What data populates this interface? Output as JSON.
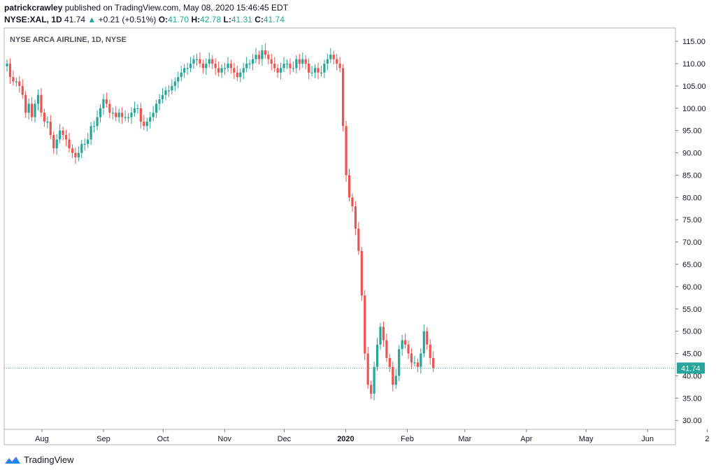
{
  "header": {
    "author": "patrickcrawley",
    "published": "published on TradingView.com, May 08, 2020 15:46:45 EDT",
    "symbol": "NYSE:XAL, 1D",
    "last": "41.74",
    "change_arrow": "▲",
    "change": "+0.21 (+0.51%)",
    "o_label": "O:",
    "o_value": "41.70",
    "h_label": "H:",
    "h_value": "42.78",
    "l_label": "L:",
    "l_value": "41.31",
    "c_label": "C:",
    "c_value": "41.74"
  },
  "chart_title": "NYSE ARCA AIRLINE, 1D, NYSE",
  "footer": {
    "brand": "TradingView",
    "logo_icon": "tradingview-logo-icon"
  },
  "colors": {
    "up": "#26a69a",
    "down": "#ef5350",
    "grid": "#e0e3eb",
    "price_line": "#26a69a"
  },
  "chart_data": {
    "type": "candlestick",
    "title": "NYSE ARCA AIRLINE, 1D, NYSE",
    "ylim": [
      28,
      118
    ],
    "y_ticks": [
      30,
      35,
      40,
      45,
      50,
      55,
      60,
      65,
      70,
      75,
      80,
      85,
      90,
      95,
      100,
      105,
      110,
      115
    ],
    "y_tick_labels": [
      "30.00",
      "35.00",
      "40.00",
      "45.00",
      "50.00",
      "55.00",
      "60.00",
      "65.00",
      "70.00",
      "75.00",
      "80.00",
      "85.00",
      "90.00",
      "95.00",
      "100.00",
      "105.00",
      "110.00",
      "115.00"
    ],
    "x_labels": [
      "Aug",
      "Sep",
      "Oct",
      "Nov",
      "Dec",
      "2020",
      "Feb",
      "Mar",
      "Apr",
      "May",
      "Jun",
      "2"
    ],
    "x_label_days": [
      13,
      44,
      74,
      105,
      135,
      166,
      197,
      226,
      257,
      287,
      318,
      348
    ],
    "start_date": "2019-07-19",
    "last_price_label": "41.74",
    "closes": [
      [
        0,
        110
      ],
      [
        1,
        107
      ],
      [
        2,
        106
      ],
      [
        3,
        106
      ],
      [
        4,
        105
      ],
      [
        5,
        103
      ],
      [
        6,
        99
      ],
      [
        7,
        101
      ],
      [
        8,
        98
      ],
      [
        9,
        101
      ],
      [
        10,
        103
      ],
      [
        11,
        99
      ],
      [
        12,
        97
      ],
      [
        13,
        97
      ],
      [
        14,
        94
      ],
      [
        15,
        91
      ],
      [
        16,
        93
      ],
      [
        17,
        95
      ],
      [
        18,
        94
      ],
      [
        19,
        93
      ],
      [
        20,
        91
      ],
      [
        21,
        90
      ],
      [
        22,
        89
      ],
      [
        23,
        90
      ],
      [
        24,
        92
      ],
      [
        25,
        92
      ],
      [
        26,
        93
      ],
      [
        27,
        96
      ],
      [
        28,
        96
      ],
      [
        29,
        98
      ],
      [
        30,
        100
      ],
      [
        31,
        102
      ],
      [
        32,
        101
      ],
      [
        33,
        99
      ],
      [
        34,
        99
      ],
      [
        35,
        98
      ],
      [
        36,
        99
      ],
      [
        37,
        98
      ],
      [
        38,
        98
      ],
      [
        39,
        98
      ],
      [
        40,
        99
      ],
      [
        41,
        100
      ],
      [
        42,
        100
      ],
      [
        43,
        97
      ],
      [
        44,
        96
      ],
      [
        45,
        97
      ],
      [
        46,
        98
      ],
      [
        47,
        99
      ],
      [
        48,
        101
      ],
      [
        49,
        102
      ],
      [
        50,
        103
      ],
      [
        51,
        104
      ],
      [
        52,
        104
      ],
      [
        53,
        105
      ],
      [
        54,
        106
      ],
      [
        55,
        107
      ],
      [
        56,
        108
      ],
      [
        57,
        109
      ],
      [
        58,
        109
      ],
      [
        59,
        110
      ],
      [
        60,
        111
      ],
      [
        61,
        111
      ],
      [
        62,
        110
      ],
      [
        63,
        109
      ],
      [
        64,
        110
      ],
      [
        65,
        111
      ],
      [
        66,
        110
      ],
      [
        67,
        109
      ],
      [
        68,
        108
      ],
      [
        69,
        109
      ],
      [
        70,
        109
      ],
      [
        71,
        110
      ],
      [
        72,
        109
      ],
      [
        73,
        108
      ],
      [
        74,
        107
      ],
      [
        75,
        108
      ],
      [
        76,
        109
      ],
      [
        77,
        110
      ],
      [
        78,
        110
      ],
      [
        79,
        111
      ],
      [
        80,
        112
      ],
      [
        81,
        111
      ],
      [
        82,
        113
      ],
      [
        83,
        112
      ],
      [
        84,
        111
      ],
      [
        85,
        110
      ],
      [
        86,
        109
      ],
      [
        87,
        108
      ],
      [
        88,
        109
      ],
      [
        89,
        110
      ],
      [
        90,
        110
      ],
      [
        91,
        109
      ],
      [
        92,
        109
      ],
      [
        93,
        111
      ],
      [
        94,
        110
      ],
      [
        95,
        111
      ],
      [
        96,
        110
      ],
      [
        97,
        108
      ],
      [
        98,
        108
      ],
      [
        99,
        109
      ],
      [
        100,
        108
      ],
      [
        101,
        108
      ],
      [
        102,
        110
      ],
      [
        103,
        111
      ],
      [
        104,
        112
      ],
      [
        105,
        111
      ],
      [
        106,
        110
      ],
      [
        107,
        109
      ],
      [
        108,
        96
      ],
      [
        109,
        85
      ],
      [
        110,
        80
      ],
      [
        111,
        78
      ],
      [
        112,
        73
      ],
      [
        113,
        68
      ],
      [
        114,
        58
      ],
      [
        115,
        45
      ],
      [
        116,
        38
      ],
      [
        117,
        36
      ],
      [
        118,
        42
      ],
      [
        119,
        47
      ],
      [
        120,
        51
      ],
      [
        121,
        48
      ],
      [
        122,
        44
      ],
      [
        123,
        42
      ],
      [
        124,
        38
      ],
      [
        125,
        40
      ],
      [
        126,
        46
      ],
      [
        127,
        48
      ],
      [
        128,
        47
      ],
      [
        129,
        45
      ],
      [
        130,
        43
      ],
      [
        131,
        43
      ],
      [
        132,
        42
      ],
      [
        133,
        45
      ],
      [
        134,
        50
      ],
      [
        135,
        47
      ],
      [
        136,
        44
      ],
      [
        137,
        41.74
      ]
    ]
  }
}
